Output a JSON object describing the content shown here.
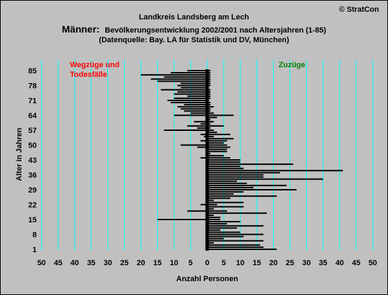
{
  "copyright": "© StratCon",
  "chart_data": {
    "type": "bar",
    "orientation": "horizontal",
    "title": "Landkreis Landsberg am Lech",
    "subtitle_lead": "Männer:",
    "subtitle_rest": "Bevölkerungsentwicklung 2002/2001 nach Altersjahren (1-85)",
    "source": "(Datenquelle: Bay. LA für Statistik und DV, München)",
    "xlabel": "Anzahl Personen",
    "ylabel": "Alter in Jahren",
    "left_label_line1": "Wegzüge und",
    "left_label_line2": "Todesfälle",
    "right_label": "Zuzüge",
    "xlim": [
      -50,
      50
    ],
    "ylim": [
      1,
      85
    ],
    "x_tick_labels": [
      "50",
      "45",
      "40",
      "35",
      "30",
      "25",
      "20",
      "15",
      "10",
      "5",
      "0",
      "5",
      "10",
      "15",
      "20",
      "25",
      "30",
      "35",
      "40",
      "45",
      "50"
    ],
    "y_ticks": [
      1,
      8,
      15,
      22,
      29,
      36,
      43,
      50,
      57,
      64,
      71,
      78,
      85
    ],
    "grid": true,
    "colors": {
      "background": "#c0c0c0",
      "grid": "#00ffff",
      "bars": "#000000",
      "left_label": "#ff0000",
      "right_label": "#008000",
      "title": "#000000"
    },
    "ages": [
      1,
      2,
      3,
      4,
      5,
      6,
      7,
      8,
      9,
      10,
      11,
      12,
      13,
      14,
      15,
      16,
      17,
      18,
      19,
      20,
      21,
      22,
      23,
      24,
      25,
      26,
      27,
      28,
      29,
      30,
      31,
      32,
      33,
      34,
      35,
      36,
      37,
      38,
      39,
      40,
      41,
      42,
      43,
      44,
      45,
      46,
      47,
      48,
      49,
      50,
      51,
      52,
      53,
      54,
      55,
      56,
      57,
      58,
      59,
      60,
      61,
      62,
      63,
      64,
      65,
      66,
      67,
      68,
      69,
      70,
      71,
      72,
      73,
      74,
      75,
      76,
      77,
      78,
      79,
      80,
      81,
      82,
      83,
      84,
      85
    ],
    "series": [
      {
        "name": "Zuzüge",
        "values": [
          21,
          17,
          16,
          2,
          17,
          5,
          11,
          17,
          10,
          4,
          9,
          17,
          6,
          10,
          4,
          4,
          2,
          18,
          6,
          2,
          11,
          3,
          11,
          2,
          7,
          21,
          8,
          11,
          27,
          14,
          24,
          12,
          9,
          35,
          17,
          17,
          22,
          41,
          11,
          10,
          26,
          10,
          10,
          7,
          5,
          1,
          6,
          6,
          7,
          6,
          5,
          6,
          8,
          2,
          7,
          3,
          2,
          1,
          5,
          1,
          2,
          1,
          3,
          8,
          2,
          1,
          1,
          2,
          1,
          1,
          0,
          1,
          1,
          1,
          1,
          1,
          0,
          1,
          1,
          1,
          1,
          1,
          1,
          1,
          1
        ]
      },
      {
        "name": "Wegzüge und Todesfälle",
        "values": [
          0,
          0,
          0,
          0,
          0,
          0,
          0,
          0,
          0,
          0,
          0,
          0,
          0,
          0,
          15,
          0,
          0,
          0,
          6,
          0,
          0,
          2,
          0,
          0,
          0,
          0,
          0,
          0,
          0,
          0,
          0,
          0,
          0,
          0,
          0,
          0,
          0,
          0,
          0,
          0,
          0,
          0,
          0,
          2,
          0,
          0,
          0,
          0,
          3,
          8,
          0,
          2,
          0,
          1,
          2,
          0,
          13,
          3,
          6,
          2,
          4,
          0,
          0,
          10,
          5,
          7,
          8,
          9,
          7,
          11,
          12,
          10,
          6,
          10,
          9,
          14,
          8,
          9,
          8,
          15,
          17,
          13,
          20,
          11,
          6
        ]
      }
    ]
  }
}
